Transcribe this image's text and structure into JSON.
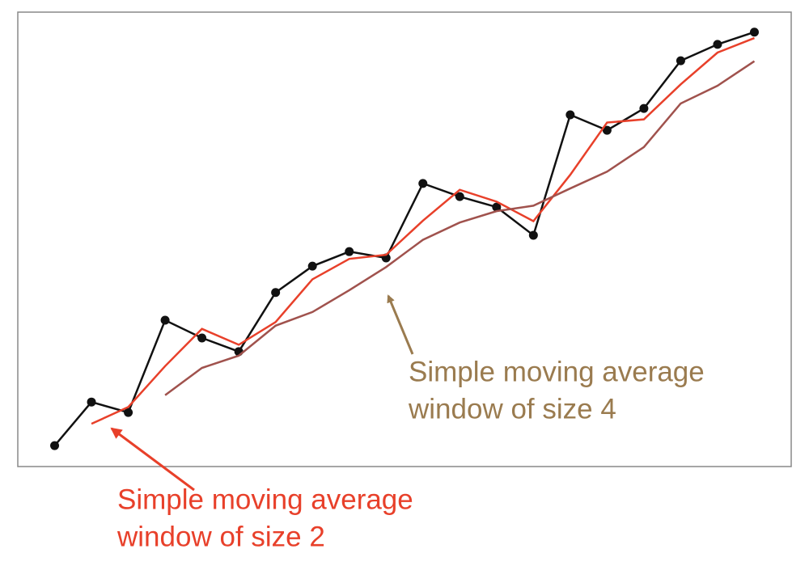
{
  "chart_data": {
    "type": "line",
    "x": [
      1,
      2,
      3,
      4,
      5,
      6,
      7,
      8,
      9,
      10,
      11,
      12,
      13,
      14,
      15,
      16,
      17,
      18,
      19,
      20
    ],
    "xlim": [
      0,
      21
    ],
    "ylim": [
      0,
      100
    ],
    "series": [
      {
        "name": null,
        "color": "#111111",
        "markers": true,
        "values": [
          4.6,
          14.2,
          11.9,
          32.2,
          28.3,
          25.3,
          38.3,
          44.1,
          47.3,
          45.9,
          62.3,
          59.4,
          57.1,
          50.9,
          77.4,
          74.0,
          78.8,
          89.3,
          92.9,
          95.6
        ]
      },
      {
        "name": null,
        "color": "#e8402a",
        "markers": false,
        "values": [
          null,
          9.4,
          13.1,
          22.1,
          30.3,
          26.8,
          31.8,
          41.2,
          45.7,
          46.6,
          54.1,
          60.9,
          58.3,
          54.0,
          64.2,
          75.7,
          76.4,
          84.1,
          91.1,
          94.3
        ]
      },
      {
        "name": null,
        "color": "#a0524d",
        "markers": false,
        "values": [
          null,
          null,
          null,
          15.7,
          21.7,
          24.4,
          31.0,
          34.0,
          38.8,
          43.9,
          49.9,
          53.7,
          56.2,
          57.4,
          61.2,
          64.9,
          70.3,
          79.9,
          83.8,
          89.2
        ]
      }
    ],
    "annotations": [
      {
        "lines": [
          "Simple moving average",
          "window of size 4"
        ],
        "color": "#9a7b4f"
      },
      {
        "lines": [
          "Simple moving average",
          "window of size 2"
        ],
        "color": "#e8402a"
      }
    ]
  }
}
